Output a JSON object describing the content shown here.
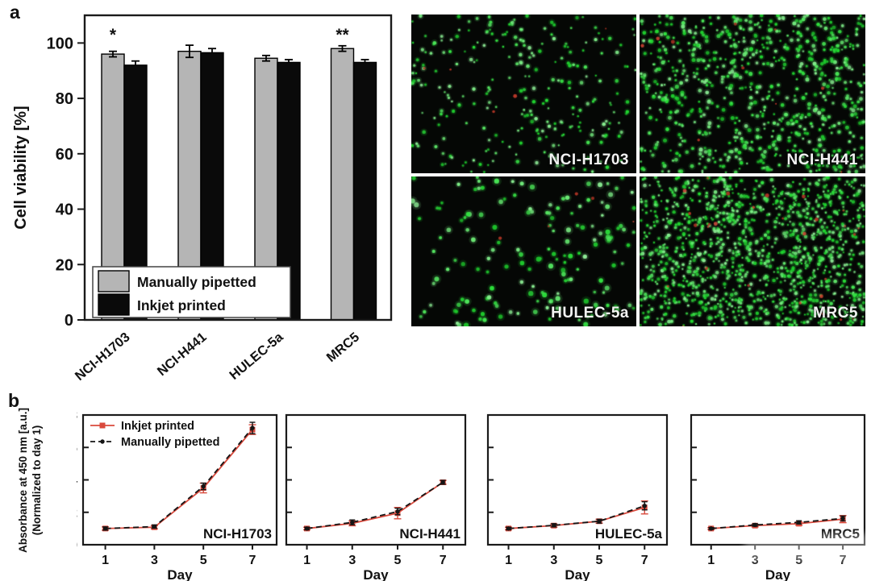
{
  "panels": {
    "a": "a",
    "b": "b"
  },
  "colors": {
    "bar_gray": "#b5b5b5",
    "bar_black": "#0a0a0a",
    "inkjet_red": "#d9493c",
    "manual_black": "#151515",
    "axis": "#1a1a1a",
    "micro_green": "#4ecb55",
    "micro_red": "#b83226"
  },
  "micrographs": {
    "panels": [
      {
        "label": "NCI-H1703",
        "green_dots": 270,
        "red_dots": 5,
        "dot_min": 1.1,
        "dot_max": 2.4,
        "cluster": 0.15,
        "seed": 11
      },
      {
        "label": "NCI-H441",
        "green_dots": 780,
        "red_dots": 10,
        "dot_min": 1.1,
        "dot_max": 2.6,
        "cluster": 0.35,
        "seed": 22
      },
      {
        "label": "HULEC-5a",
        "green_dots": 165,
        "red_dots": 5,
        "dot_min": 1.7,
        "dot_max": 3.2,
        "cluster": 0.12,
        "seed": 33
      },
      {
        "label": "MRC5",
        "green_dots": 1250,
        "red_dots": 28,
        "dot_min": 1.0,
        "dot_max": 2.4,
        "cluster": 0.3,
        "seed": 44
      }
    ]
  },
  "chart_data": [
    {
      "id": "viability",
      "type": "bar",
      "title": "",
      "xlabel": "",
      "ylabel": "Cell viability [%]",
      "ylim": [
        0,
        110
      ],
      "yticks": [
        0,
        20,
        40,
        60,
        80,
        100
      ],
      "grid": false,
      "legend_position": "inside-bottom-left",
      "categories": [
        "NCI-H1703",
        "NCI-H441",
        "HULEC-5a",
        "MRC5"
      ],
      "series": [
        {
          "name": "Manually pipetted",
          "color": "#b5b5b5",
          "values": [
            96,
            97,
            94.5,
            98
          ],
          "errors": [
            1,
            2.2,
            1,
            1
          ]
        },
        {
          "name": "Inkjet printed",
          "color": "#0a0a0a",
          "values": [
            92,
            96.5,
            93,
            93
          ],
          "errors": [
            1.5,
            1.5,
            1,
            1
          ]
        }
      ],
      "significance": [
        {
          "category": "NCI-H1703",
          "mark": "*"
        },
        {
          "category": "MRC5",
          "mark": "**"
        }
      ]
    },
    {
      "id": "growth-nci-h1703",
      "type": "line",
      "inner_label": "NCI-H1703",
      "xlabel": "Day",
      "ylabel": "Absorbance at 450 nm [a.u.] (Normalized to day 1)",
      "x": [
        1,
        3,
        5,
        7
      ],
      "ylim": [
        0,
        8
      ],
      "yticks": [
        0,
        2,
        4,
        6,
        8
      ],
      "show_ytick_labels": true,
      "legend": true,
      "series": [
        {
          "name": "Inkjet printed",
          "color": "#d9493c",
          "style": "solid",
          "marker": "square",
          "values": [
            1.0,
            1.08,
            3.5,
            7.1
          ],
          "errors": [
            0.1,
            0.1,
            0.3,
            0.3
          ]
        },
        {
          "name": "Manually pipetted",
          "color": "#151515",
          "style": "dashed",
          "marker": "circle",
          "values": [
            1.0,
            1.12,
            3.6,
            7.2
          ],
          "errors": [
            0.1,
            0.1,
            0.2,
            0.35
          ]
        }
      ]
    },
    {
      "id": "growth-nci-h441",
      "type": "line",
      "inner_label": "NCI-H441",
      "xlabel": "Day",
      "x": [
        1,
        3,
        5,
        7
      ],
      "ylim": [
        0,
        8
      ],
      "yticks": [
        0,
        2,
        4,
        6,
        8
      ],
      "show_ytick_labels": false,
      "legend": false,
      "series": [
        {
          "name": "Inkjet printed",
          "color": "#d9493c",
          "style": "solid",
          "marker": "square",
          "values": [
            1.0,
            1.32,
            1.95,
            3.85
          ],
          "errors": [
            0.08,
            0.15,
            0.35,
            0.12
          ]
        },
        {
          "name": "Manually pipetted",
          "color": "#151515",
          "style": "dashed",
          "marker": "circle",
          "values": [
            1.0,
            1.38,
            2.05,
            3.85
          ],
          "errors": [
            0.08,
            0.15,
            0.2,
            0.12
          ]
        }
      ]
    },
    {
      "id": "growth-hulec-5a",
      "type": "line",
      "inner_label": "HULEC-5a",
      "xlabel": "Day",
      "x": [
        1,
        3,
        5,
        7
      ],
      "ylim": [
        0,
        8
      ],
      "yticks": [
        0,
        2,
        4,
        6,
        8
      ],
      "show_ytick_labels": false,
      "legend": false,
      "series": [
        {
          "name": "Inkjet printed",
          "color": "#d9493c",
          "style": "solid",
          "marker": "square",
          "values": [
            1.0,
            1.18,
            1.45,
            2.3
          ],
          "errors": [
            0.08,
            0.1,
            0.12,
            0.4
          ]
        },
        {
          "name": "Manually pipetted",
          "color": "#151515",
          "style": "dashed",
          "marker": "circle",
          "values": [
            1.0,
            1.2,
            1.45,
            2.4
          ],
          "errors": [
            0.08,
            0.1,
            0.12,
            0.25
          ]
        }
      ]
    },
    {
      "id": "growth-mrc5",
      "type": "line",
      "inner_label": "MRC5",
      "xlabel": "Day",
      "x": [
        1,
        3,
        5,
        7
      ],
      "ylim": [
        0,
        8
      ],
      "yticks": [
        0,
        2,
        4,
        6,
        8
      ],
      "show_ytick_labels": false,
      "legend": false,
      "series": [
        {
          "name": "Inkjet printed",
          "color": "#d9493c",
          "style": "solid",
          "marker": "square",
          "values": [
            1.0,
            1.18,
            1.3,
            1.58
          ],
          "errors": [
            0.06,
            0.08,
            0.1,
            0.22
          ]
        },
        {
          "name": "Manually pipetted",
          "color": "#151515",
          "style": "dashed",
          "marker": "circle",
          "values": [
            1.0,
            1.22,
            1.38,
            1.62
          ],
          "errors": [
            0.06,
            0.08,
            0.1,
            0.15
          ]
        }
      ]
    }
  ],
  "b_axis_label": {
    "line1": "Absorbance at 450 nm [a.u.]",
    "line2": "(Normalized to day 1)"
  }
}
